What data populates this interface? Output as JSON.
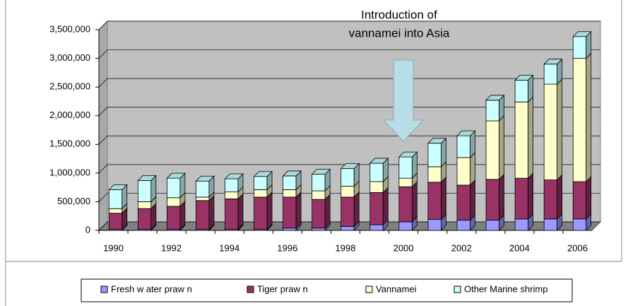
{
  "chart_data": {
    "type": "bar3d-stacked",
    "annotation": [
      "Introduction of",
      "vannamei into Asia"
    ],
    "categories": [
      "1990",
      null,
      "1992",
      null,
      "1994",
      null,
      "1996",
      null,
      "1998",
      null,
      "2000",
      null,
      "2002",
      null,
      "2004",
      null,
      "2006"
    ],
    "series": [
      {
        "name": "Fresh w ater praw n",
        "color": "#9999ff",
        "values": [
          20000,
          20000,
          20000,
          20000,
          20000,
          20000,
          40000,
          40000,
          70000,
          100000,
          150000,
          190000,
          180000,
          180000,
          200000,
          200000,
          200000
        ]
      },
      {
        "name": "Tiger praw n",
        "color": "#993366",
        "values": [
          280000,
          360000,
          400000,
          500000,
          530000,
          560000,
          540000,
          500000,
          510000,
          560000,
          610000,
          650000,
          610000,
          710000,
          710000,
          680000,
          650000
        ]
      },
      {
        "name": "Vannamei",
        "color": "#ffffcc",
        "values": [
          80000,
          120000,
          150000,
          60000,
          120000,
          130000,
          130000,
          150000,
          190000,
          190000,
          150000,
          270000,
          480000,
          1020000,
          1330000,
          1670000,
          2150000
        ]
      },
      {
        "name": "Other Marine shrimp",
        "color": "#ccffff",
        "values": [
          330000,
          370000,
          340000,
          280000,
          230000,
          230000,
          240000,
          290000,
          310000,
          320000,
          370000,
          410000,
          380000,
          360000,
          380000,
          350000,
          380000
        ]
      }
    ],
    "ylim": [
      0,
      3500000
    ],
    "yticks": [
      0,
      {
        "value": 500000,
        "label": "500,000"
      },
      {
        "value": 1000000,
        "label": "1,000,000"
      },
      {
        "value": 1500000,
        "label": "1,500,000"
      },
      {
        "value": 2000000,
        "label": "2,000,000"
      },
      {
        "value": 2500000,
        "label": "2,500,000"
      },
      {
        "value": 3000000,
        "label": "3,000,000"
      },
      {
        "value": 3500000,
        "label": "3,500,000"
      }
    ],
    "grid": true,
    "legend": "bottom"
  }
}
